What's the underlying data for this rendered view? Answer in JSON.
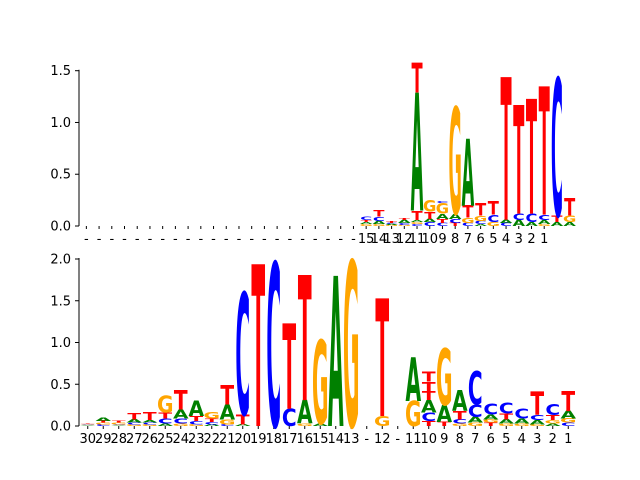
{
  "colors": {
    "A": "#008000",
    "C": "#0000ff",
    "G": "#ffa500",
    "T": "#ff0000",
    "axis": "#000000"
  },
  "chart_data": [
    {
      "type": "sequence-logo",
      "title": "",
      "xlabel": "",
      "ylabel": "",
      "ylim": [
        0,
        1.7
      ],
      "yticks": [
        0.0,
        0.5,
        1.0,
        1.5
      ],
      "ytick_labels": [
        "0.0",
        "0.5",
        "1.0",
        "1.5"
      ],
      "xtick_labels": [
        "-",
        "-",
        "-",
        "-",
        "-",
        "-",
        "-",
        "-",
        "-",
        "-",
        "-",
        "-",
        "-",
        "-",
        "-",
        "-",
        "-",
        "-",
        "-",
        "-",
        "-",
        "-",
        "15",
        "14",
        "13",
        "12",
        "11",
        "10",
        "9",
        "8",
        "7",
        "6",
        "5",
        "4",
        "3",
        "2",
        "1"
      ],
      "positions": [
        {},
        {},
        {},
        {},
        {},
        {},
        {},
        {},
        {},
        {},
        {},
        {},
        {},
        {},
        {},
        {},
        {},
        {},
        {},
        {},
        {},
        {},
        {
          "letters": [
            [
              "G",
              0.02
            ],
            [
              "A",
              0.02
            ],
            [
              "T",
              0.02
            ],
            [
              "C",
              0.03
            ]
          ]
        },
        {
          "letters": [
            [
              "G",
              0.02
            ],
            [
              "A",
              0.03
            ],
            [
              "C",
              0.04
            ],
            [
              "T",
              0.06
            ]
          ]
        },
        {
          "letters": [
            [
              "G",
              0.01
            ],
            [
              "A",
              0.01
            ],
            [
              "C",
              0.01
            ],
            [
              "T",
              0.02
            ]
          ]
        },
        {
          "letters": [
            [
              "G",
              0.01
            ],
            [
              "C",
              0.02
            ],
            [
              "A",
              0.03
            ],
            [
              "T",
              0.02
            ]
          ]
        },
        {
          "letters": [
            [
              "C",
              0.02
            ],
            [
              "G",
              0.02
            ],
            [
              "A",
              0.02
            ],
            [
              "T",
              0.09
            ],
            [
              "A",
              1.14
            ],
            [
              "T",
              0.29
            ]
          ]
        },
        {
          "letters": [
            [
              "C",
              0.04
            ],
            [
              "A",
              0.03
            ],
            [
              "T",
              0.07
            ],
            [
              "G",
              0.11
            ]
          ]
        },
        {
          "letters": [
            [
              "C",
              0.03
            ],
            [
              "T",
              0.04
            ],
            [
              "A",
              0.05
            ],
            [
              "G",
              0.1
            ],
            [
              "C",
              0.02
            ]
          ]
        },
        {
          "letters": [
            [
              "T",
              0.03
            ],
            [
              "C",
              0.04
            ],
            [
              "A",
              0.05
            ],
            [
              "G",
              1.03
            ]
          ]
        },
        {
          "letters": [
            [
              "C",
              0.03
            ],
            [
              "G",
              0.05
            ],
            [
              "T",
              0.12
            ],
            [
              "A",
              0.65
            ]
          ]
        },
        {
          "letters": [
            [
              "A",
              0.02
            ],
            [
              "C",
              0.03
            ],
            [
              "G",
              0.05
            ],
            [
              "T",
              0.12
            ]
          ]
        },
        {
          "letters": [
            [
              "G",
              0.04
            ],
            [
              "C",
              0.07
            ],
            [
              "T",
              0.13
            ]
          ]
        },
        {
          "letters": [
            [
              "C",
              0.03
            ],
            [
              "A",
              0.03
            ],
            [
              "T",
              1.38
            ]
          ]
        },
        {
          "letters": [
            [
              "A",
              0.06
            ],
            [
              "C",
              0.06
            ],
            [
              "T",
              1.05
            ]
          ]
        },
        {
          "letters": [
            [
              "A",
              0.04
            ],
            [
              "C",
              0.08
            ],
            [
              "T",
              1.11
            ]
          ]
        },
        {
          "letters": [
            [
              "G",
              0.02
            ],
            [
              "A",
              0.04
            ],
            [
              "C",
              0.05
            ],
            [
              "T",
              1.24
            ]
          ]
        },
        {
          "letters": [
            [
              "A",
              0.04
            ],
            [
              "T",
              0.06
            ],
            [
              "C",
              1.33
            ]
          ]
        },
        {
          "letters": [
            [
              "A",
              0.04
            ],
            [
              "G",
              0.06
            ],
            [
              "T",
              0.17
            ]
          ]
        }
      ]
    },
    {
      "type": "sequence-logo",
      "title": "",
      "xlabel": "",
      "ylabel": "",
      "ylim": [
        0,
        2.0
      ],
      "yticks": [
        0.0,
        0.5,
        1.0,
        1.5,
        2.0
      ],
      "ytick_labels": [
        "0.0",
        "0.5",
        "1.0",
        "1.5",
        "2.0"
      ],
      "xtick_labels": [
        "30",
        "29",
        "28",
        "27",
        "26",
        "25",
        "24",
        "23",
        "22",
        "21",
        "20",
        "19",
        "18",
        "17",
        "16",
        "15",
        "14",
        "13",
        "-",
        "12",
        "-",
        "11",
        "10",
        "9",
        "8",
        "7",
        "6",
        "5",
        "4",
        "3",
        "2",
        "1"
      ],
      "positions": [
        {
          "letters": [
            [
              "A",
              0.01
            ],
            [
              "C",
              0.01
            ],
            [
              "G",
              0.01
            ],
            [
              "T",
              0.01
            ]
          ]
        },
        {
          "letters": [
            [
              "C",
              0.02
            ],
            [
              "G",
              0.02
            ],
            [
              "T",
              0.02
            ],
            [
              "A",
              0.04
            ]
          ]
        },
        {
          "letters": [
            [
              "A",
              0.01
            ],
            [
              "C",
              0.01
            ],
            [
              "G",
              0.02
            ],
            [
              "T",
              0.02
            ]
          ]
        },
        {
          "letters": [
            [
              "G",
              0.02
            ],
            [
              "C",
              0.02
            ],
            [
              "A",
              0.04
            ],
            [
              "T",
              0.08
            ]
          ]
        },
        {
          "letters": [
            [
              "G",
              0.02
            ],
            [
              "C",
              0.02
            ],
            [
              "A",
              0.03
            ],
            [
              "T",
              0.09
            ]
          ]
        },
        {
          "letters": [
            [
              "A",
              0.03
            ],
            [
              "C",
              0.06
            ],
            [
              "T",
              0.07
            ],
            [
              "G",
              0.2
            ]
          ]
        },
        {
          "letters": [
            [
              "G",
              0.03
            ],
            [
              "C",
              0.06
            ],
            [
              "A",
              0.11
            ],
            [
              "T",
              0.23
            ]
          ]
        },
        {
          "letters": [
            [
              "G",
              0.02
            ],
            [
              "C",
              0.04
            ],
            [
              "T",
              0.06
            ],
            [
              "A",
              0.19
            ]
          ]
        },
        {
          "letters": [
            [
              "A",
              0.02
            ],
            [
              "C",
              0.03
            ],
            [
              "T",
              0.04
            ],
            [
              "G",
              0.08
            ]
          ]
        },
        {
          "letters": [
            [
              "C",
              0.02
            ],
            [
              "G",
              0.06
            ],
            [
              "A",
              0.18
            ],
            [
              "T",
              0.23
            ]
          ]
        },
        {
          "letters": [
            [
              "A",
              0.02
            ],
            [
              "T",
              0.12
            ],
            [
              "C",
              1.46
            ]
          ]
        },
        {
          "letters": [
            [
              "T",
              1.94
            ]
          ]
        },
        {
          "letters": [
            [
              "C",
              1.96
            ]
          ]
        },
        {
          "letters": [
            [
              "C",
              0.21
            ],
            [
              "T",
              1.02
            ]
          ]
        },
        {
          "letters": [
            [
              "G",
              0.03
            ],
            [
              "A",
              0.28
            ],
            [
              "T",
              1.5
            ]
          ]
        },
        {
          "letters": [
            [
              "A",
              0.03
            ],
            [
              "G",
              1.0
            ]
          ]
        },
        {
          "letters": [
            [
              "A",
              1.8
            ]
          ]
        },
        {
          "letters": [
            [
              "G",
              1.98
            ]
          ]
        },
        {},
        {
          "letters": [
            [
              "G",
              0.12
            ],
            [
              "T",
              1.41
            ]
          ]
        },
        {},
        {
          "letters": [
            [
              "G",
              0.3
            ],
            [
              "A",
              0.52
            ]
          ]
        },
        {
          "letters": [
            [
              "T",
              0.06
            ],
            [
              "C",
              0.1
            ],
            [
              "A",
              0.15
            ],
            [
              "T",
              0.11
            ],
            [
              "T",
              0.11
            ],
            [
              "T",
              0.12
            ]
          ]
        },
        {
          "letters": [
            [
              "T",
              0.05
            ],
            [
              "A",
              0.2
            ],
            [
              "G",
              0.68
            ]
          ]
        },
        {
          "letters": [
            [
              "G",
              0.03
            ],
            [
              "C",
              0.05
            ],
            [
              "T",
              0.1
            ],
            [
              "A",
              0.25
            ]
          ]
        },
        {
          "letters": [
            [
              "G",
              0.04
            ],
            [
              "A",
              0.07
            ],
            [
              "C",
              0.15
            ],
            [
              "C",
              0.4
            ]
          ]
        },
        {
          "letters": [
            [
              "T",
              0.04
            ],
            [
              "G",
              0.04
            ],
            [
              "A",
              0.06
            ],
            [
              "C",
              0.13
            ]
          ]
        },
        {
          "letters": [
            [
              "G",
              0.03
            ],
            [
              "A",
              0.05
            ],
            [
              "T",
              0.07
            ],
            [
              "C",
              0.13
            ]
          ]
        },
        {
          "letters": [
            [
              "G",
              0.03
            ],
            [
              "A",
              0.06
            ],
            [
              "C",
              0.12
            ]
          ]
        },
        {
          "letters": [
            [
              "G",
              0.02
            ],
            [
              "A",
              0.05
            ],
            [
              "C",
              0.06
            ],
            [
              "T",
              0.28
            ]
          ]
        },
        {
          "letters": [
            [
              "A",
              0.03
            ],
            [
              "G",
              0.04
            ],
            [
              "T",
              0.06
            ],
            [
              "C",
              0.13
            ]
          ]
        },
        {
          "letters": [
            [
              "C",
              0.04
            ],
            [
              "G",
              0.05
            ],
            [
              "A",
              0.09
            ],
            [
              "T",
              0.24
            ]
          ]
        }
      ]
    }
  ]
}
